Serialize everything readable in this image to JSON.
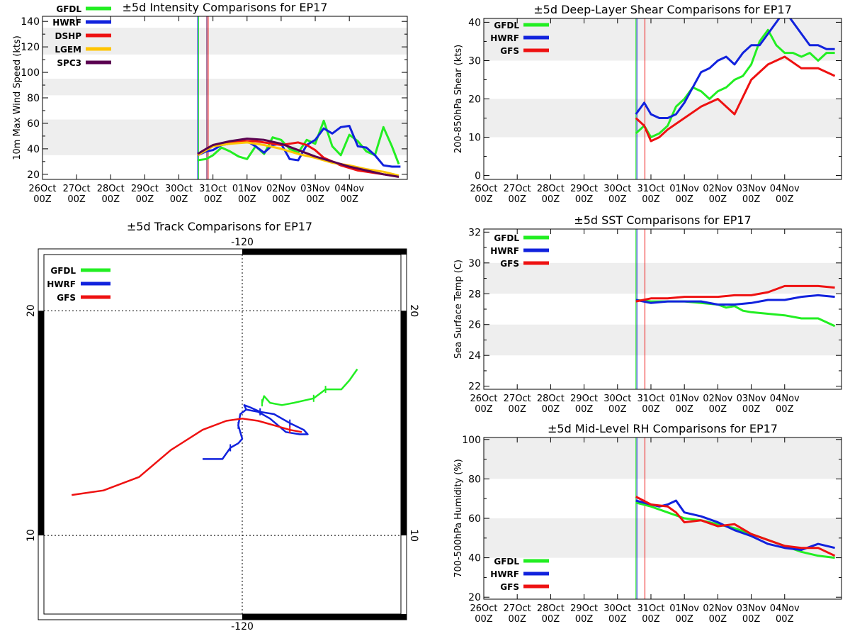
{
  "colors": {
    "GFDL": "#22ee22",
    "HWRF": "#1122dd",
    "DSHP": "#ee1111",
    "LGEM": "#ffc400",
    "SPC3": "#5a0050",
    "GFS": "#ee1111",
    "band": "#eeeeee"
  },
  "time_ticks": [
    {
      "top": "26Oct",
      "bottom": "00Z"
    },
    {
      "top": "27Oct",
      "bottom": "00Z"
    },
    {
      "top": "28Oct",
      "bottom": "00Z"
    },
    {
      "top": "29Oct",
      "bottom": "00Z"
    },
    {
      "top": "30Oct",
      "bottom": "00Z"
    },
    {
      "top": "31Oct",
      "bottom": "00Z"
    },
    {
      "top": "01Nov",
      "bottom": "00Z"
    },
    {
      "top": "02Nov",
      "bottom": "00Z"
    },
    {
      "top": "03Nov",
      "bottom": "00Z"
    },
    {
      "top": "04Nov",
      "bottom": "00Z"
    }
  ],
  "chart_data": [
    {
      "id": "intensity",
      "type": "line",
      "title": "±5d Intensity Comparisons for EP17",
      "ylabel": "10m Max Wind Speed (kts)",
      "xlabel": "",
      "xlim": [
        0,
        10.7
      ],
      "ylim": [
        16,
        144
      ],
      "yticks": [
        20,
        40,
        60,
        80,
        100,
        120,
        140
      ],
      "bands": [
        [
          35,
          63
        ],
        [
          82,
          95
        ],
        [
          114,
          135
        ]
      ],
      "vlines": [
        {
          "x": 4.55,
          "color": "#1122dd"
        },
        {
          "x": 4.58,
          "color": "#22ee22"
        },
        {
          "x": 4.82,
          "color": "#5a0050"
        },
        {
          "x": 4.86,
          "color": "#ee1111"
        }
      ],
      "legend": [
        "GFDL",
        "HWRF",
        "DSHP",
        "LGEM",
        "SPC3"
      ],
      "series": [
        {
          "name": "GFDL",
          "x": [
            4.55,
            4.8,
            5.0,
            5.25,
            5.5,
            5.75,
            6.0,
            6.25,
            6.5,
            6.75,
            7.0,
            7.25,
            7.5,
            7.75,
            8.0,
            8.25,
            8.5,
            8.75,
            9.0,
            9.25,
            9.5,
            9.75,
            10.0,
            10.25,
            10.45
          ],
          "y": [
            31,
            32,
            35,
            41,
            38,
            34,
            32,
            42,
            36,
            49,
            47,
            40,
            37,
            47,
            44,
            62,
            42,
            35,
            51,
            46,
            38,
            35,
            57,
            42,
            28
          ]
        },
        {
          "name": "HWRF",
          "x": [
            4.55,
            4.8,
            5.0,
            5.25,
            5.5,
            5.75,
            6.0,
            6.25,
            6.5,
            6.75,
            7.0,
            7.25,
            7.5,
            7.75,
            8.0,
            8.25,
            8.5,
            8.75,
            9.0,
            9.25,
            9.5,
            9.75,
            10.0,
            10.25,
            10.5
          ],
          "y": [
            35,
            38,
            39,
            43,
            44,
            46,
            46,
            42,
            37,
            43,
            44,
            32,
            31,
            43,
            47,
            56,
            52,
            57,
            58,
            42,
            41,
            35,
            27,
            26,
            26
          ]
        },
        {
          "name": "DSHP",
          "x": [
            4.55,
            4.8,
            5.0,
            5.25,
            5.5,
            5.75,
            6.0,
            6.25,
            6.5,
            6.75,
            7.0,
            7.25,
            7.5,
            7.75,
            8.0,
            8.25,
            8.5,
            8.75,
            9.0,
            9.25,
            9.5,
            9.75,
            10.0,
            10.25,
            10.45
          ],
          "y": [
            35,
            39,
            42,
            44,
            45,
            46,
            46,
            46,
            45,
            44,
            43,
            44,
            45,
            43,
            39,
            33,
            30,
            27,
            25,
            23,
            22,
            21,
            20,
            19,
            18
          ]
        },
        {
          "name": "LGEM",
          "x": [
            4.55,
            4.8,
            5.0,
            5.5,
            6.0,
            6.5,
            7.0,
            7.5,
            8.0,
            8.5,
            9.0,
            9.5,
            10.0,
            10.45
          ],
          "y": [
            35,
            39,
            42,
            44,
            45,
            43,
            40,
            36,
            33,
            29,
            27,
            24,
            22,
            19
          ]
        },
        {
          "name": "SPC3",
          "x": [
            4.55,
            4.8,
            5.0,
            5.5,
            6.0,
            6.5,
            7.0,
            7.5,
            8.0,
            8.5,
            9.0,
            9.5,
            10.0,
            10.45
          ],
          "y": [
            36,
            40,
            43,
            46,
            48,
            47,
            44,
            39,
            34,
            30,
            26,
            23,
            20,
            18
          ]
        }
      ]
    },
    {
      "id": "shear",
      "type": "line",
      "title": "±5d Deep-Layer Shear Comparisons for EP17",
      "ylabel": "200-850hPa Shear (kts)",
      "xlabel": "",
      "xlim": [
        0,
        10.7
      ],
      "ylim": [
        -1,
        41
      ],
      "yticks": [
        0,
        10,
        20,
        30,
        40
      ],
      "bands": [
        [
          10,
          20
        ],
        [
          30,
          41
        ]
      ],
      "vlines": [
        {
          "x": 4.55,
          "color": "#22ee22"
        },
        {
          "x": 4.58,
          "color": "#1122dd"
        },
        {
          "x": 4.82,
          "color": "#ee1111"
        }
      ],
      "legend": [
        "GFDL",
        "HWRF",
        "GFS"
      ],
      "series": [
        {
          "name": "GFDL",
          "x": [
            4.55,
            4.8,
            5.0,
            5.25,
            5.5,
            5.75,
            6.0,
            6.25,
            6.5,
            6.75,
            7.0,
            7.25,
            7.5,
            7.75,
            8.0,
            8.25,
            8.5,
            8.75,
            9.0,
            9.25,
            9.5,
            9.75,
            10.0,
            10.25,
            10.5
          ],
          "y": [
            11,
            13,
            10,
            11,
            13,
            18,
            20,
            23,
            22,
            20,
            22,
            23,
            25,
            26,
            29,
            35,
            38,
            34,
            32,
            32,
            31,
            32,
            30,
            32,
            32
          ]
        },
        {
          "name": "HWRF",
          "x": [
            4.55,
            4.8,
            5.0,
            5.25,
            5.5,
            5.75,
            6.0,
            6.25,
            6.5,
            6.75,
            7.0,
            7.25,
            7.5,
            7.75,
            8.0,
            8.25,
            8.5,
            8.75,
            9.0,
            9.25,
            9.5,
            9.75,
            10.0,
            10.25,
            10.5
          ],
          "y": [
            16,
            19,
            16,
            15,
            15,
            16,
            19,
            23,
            27,
            28,
            30,
            31,
            29,
            32,
            34,
            34,
            37,
            40,
            43,
            40,
            37,
            34,
            34,
            33,
            33
          ]
        },
        {
          "name": "GFS",
          "x": [
            4.55,
            4.8,
            5.0,
            5.25,
            5.5,
            6.0,
            6.5,
            7.0,
            7.5,
            8.0,
            8.5,
            9.0,
            9.5,
            10.0,
            10.5
          ],
          "y": [
            15,
            13,
            9,
            10,
            12,
            15,
            18,
            20,
            16,
            25,
            29,
            31,
            28,
            28,
            26
          ]
        }
      ]
    },
    {
      "id": "sst",
      "type": "line",
      "title": "±5d SST Comparisons for EP17",
      "ylabel": "Sea Surface Temp (C)",
      "xlabel": "",
      "xlim": [
        0,
        10.7
      ],
      "ylim": [
        21.8,
        32.2
      ],
      "yticks": [
        22,
        24,
        26,
        28,
        30,
        32
      ],
      "bands": [
        [
          24,
          26
        ],
        [
          28,
          30
        ]
      ],
      "vlines": [
        {
          "x": 4.55,
          "color": "#22ee22"
        },
        {
          "x": 4.58,
          "color": "#1122dd"
        },
        {
          "x": 4.82,
          "color": "#ee1111"
        }
      ],
      "legend": [
        "GFDL",
        "HWRF",
        "GFS"
      ],
      "series": [
        {
          "name": "GFDL",
          "x": [
            4.55,
            5.0,
            5.5,
            6.0,
            6.5,
            7.0,
            7.25,
            7.5,
            7.75,
            8.0,
            8.5,
            9.0,
            9.5,
            10.0,
            10.5
          ],
          "y": [
            27.6,
            27.5,
            27.5,
            27.5,
            27.4,
            27.3,
            27.1,
            27.2,
            26.9,
            26.8,
            26.7,
            26.6,
            26.4,
            26.4,
            25.9
          ]
        },
        {
          "name": "HWRF",
          "x": [
            4.55,
            5.0,
            5.5,
            6.0,
            6.5,
            7.0,
            7.5,
            8.0,
            8.5,
            9.0,
            9.5,
            10.0,
            10.5
          ],
          "y": [
            27.6,
            27.4,
            27.5,
            27.5,
            27.5,
            27.3,
            27.3,
            27.4,
            27.6,
            27.6,
            27.8,
            27.9,
            27.8
          ]
        },
        {
          "name": "GFS",
          "x": [
            4.55,
            5.0,
            5.5,
            6.0,
            6.5,
            7.0,
            7.5,
            8.0,
            8.5,
            9.0,
            9.5,
            10.0,
            10.5
          ],
          "y": [
            27.5,
            27.7,
            27.7,
            27.8,
            27.8,
            27.8,
            27.9,
            27.9,
            28.1,
            28.5,
            28.5,
            28.5,
            28.4
          ]
        }
      ]
    },
    {
      "id": "rh",
      "type": "line",
      "title": "±5d Mid-Level RH Comparisons for EP17",
      "ylabel": "700-500hPa Humidity (%)",
      "xlabel": "",
      "xlim": [
        0,
        10.7
      ],
      "ylim": [
        19,
        101
      ],
      "yticks": [
        20,
        40,
        60,
        80,
        100
      ],
      "bands": [
        [
          40,
          60
        ],
        [
          80,
          101
        ]
      ],
      "vlines": [
        {
          "x": 4.55,
          "color": "#22ee22"
        },
        {
          "x": 4.58,
          "color": "#1122dd"
        },
        {
          "x": 4.82,
          "color": "#ee1111"
        }
      ],
      "legend": [
        "GFDL",
        "HWRF",
        "GFS"
      ],
      "series": [
        {
          "name": "GFDL",
          "x": [
            4.55,
            5.0,
            5.5,
            6.0,
            6.5,
            7.0,
            7.5,
            8.0,
            8.5,
            9.0,
            9.5,
            10.0,
            10.5
          ],
          "y": [
            68,
            66,
            63,
            60,
            59,
            57,
            55,
            52,
            49,
            46,
            43,
            41,
            40
          ]
        },
        {
          "name": "HWRF",
          "x": [
            4.55,
            5.0,
            5.25,
            5.5,
            5.75,
            6.0,
            6.5,
            7.0,
            7.5,
            8.0,
            8.5,
            9.0,
            9.5,
            10.0,
            10.5
          ],
          "y": [
            69,
            67,
            66,
            67,
            69,
            63,
            61,
            58,
            54,
            51,
            47,
            45,
            44,
            47,
            45
          ]
        },
        {
          "name": "GFS",
          "x": [
            4.55,
            5.0,
            5.5,
            5.75,
            6.0,
            6.5,
            7.0,
            7.5,
            8.0,
            8.5,
            9.0,
            9.5,
            10.0,
            10.5
          ],
          "y": [
            71,
            67,
            66,
            63,
            58,
            59,
            56,
            57,
            52,
            49,
            46,
            45,
            45,
            41
          ]
        }
      ]
    },
    {
      "id": "track",
      "type": "line",
      "title": "±5d Track Comparisons for EP17",
      "xlabel": "",
      "ylabel": "",
      "lon_range": [
        -125,
        -116
      ],
      "lat_range": [
        6.5,
        22.5
      ],
      "lon_ticks": [
        {
          "value": -120,
          "label": "-120"
        }
      ],
      "lat_ticks": [
        {
          "value": 20,
          "label": "20"
        },
        {
          "value": 10,
          "label": "10"
        }
      ],
      "legend": [
        "GFDL",
        "HWRF",
        "GFS"
      ],
      "series": [
        {
          "name": "GFDL",
          "lon": [
            -119.5,
            -119.45,
            -119.3,
            -119.0,
            -118.7,
            -118.2,
            -117.9,
            -117.5,
            -117.3,
            -117.1
          ],
          "lat": [
            15.9,
            16.2,
            15.9,
            15.8,
            15.9,
            16.1,
            16.5,
            16.5,
            16.9,
            17.4
          ],
          "marks": [
            0,
            5,
            6
          ]
        },
        {
          "name": "HWRF",
          "lon": [
            -121.0,
            -120.5,
            -120.3,
            -120.1,
            -120.0,
            -120.1,
            -120.05,
            -119.9,
            -119.95,
            -119.8,
            -119.55,
            -119.2,
            -118.8,
            -118.45,
            -118.35,
            -118.55,
            -118.9,
            -119.3,
            -119.6,
            -119.9
          ],
          "lat": [
            13.4,
            13.4,
            13.9,
            14.1,
            14.3,
            14.9,
            15.4,
            15.6,
            15.8,
            15.7,
            15.5,
            15.4,
            15.0,
            14.7,
            14.5,
            14.5,
            14.6,
            15.2,
            15.5,
            15.6
          ],
          "marks": [
            2,
            5,
            10,
            12
          ]
        },
        {
          "name": "GFS",
          "lon": [
            -124.3,
            -123.5,
            -122.6,
            -121.8,
            -121.0,
            -120.4,
            -120.0,
            -119.6,
            -119.2,
            -118.8,
            -118.5
          ],
          "lat": [
            11.8,
            12.0,
            12.6,
            13.8,
            14.7,
            15.1,
            15.2,
            15.1,
            14.9,
            14.7,
            14.6
          ],
          "marks": [
            9
          ]
        }
      ]
    }
  ]
}
